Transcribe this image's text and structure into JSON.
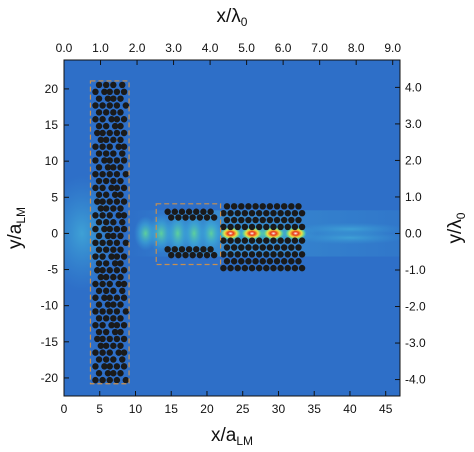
{
  "chart_data": {
    "type": "heatmap",
    "bottom_axis": {
      "label_main": "x/a",
      "label_sub": "LM",
      "range": [
        0,
        47
      ],
      "ticks": [
        "0",
        "5",
        "10",
        "15",
        "20",
        "25",
        "30",
        "35",
        "40",
        "45"
      ],
      "tick_values": [
        0,
        5,
        10,
        15,
        20,
        25,
        30,
        35,
        40,
        45
      ]
    },
    "top_axis": {
      "label_main": "x/λ",
      "label_sub": "0",
      "range": [
        0,
        9.2
      ],
      "ticks": [
        "0.0",
        "1.0",
        "2.0",
        "3.0",
        "4.0",
        "5.0",
        "6.0",
        "7.0",
        "8.0",
        "9.0"
      ],
      "tick_values": [
        0,
        1,
        2,
        3,
        4,
        5,
        6,
        7,
        8,
        9
      ]
    },
    "left_axis": {
      "label_main": "y/a",
      "label_sub": "LM",
      "range": [
        -22.5,
        24
      ],
      "ticks": [
        "-20",
        "-15",
        "-10",
        "-5",
        "0",
        "5",
        "10",
        "15",
        "20"
      ],
      "tick_values": [
        -20,
        -15,
        -10,
        -5,
        0,
        5,
        10,
        15,
        20
      ]
    },
    "right_axis": {
      "label_main": "y/λ",
      "label_sub": "0",
      "range": [
        -4.45,
        4.75
      ],
      "ticks": [
        "-4.0",
        "-3.0",
        "-2.0",
        "-1.0",
        "0.0",
        "1.0",
        "2.0",
        "3.0",
        "4.0"
      ],
      "tick_values": [
        -4,
        -3,
        -2,
        -1,
        0,
        1,
        2,
        3,
        4
      ]
    },
    "grid": false,
    "legend": "none",
    "colors": {
      "background_field": "#2e6fc8",
      "weak_field": "#3aa0d8",
      "medium_field": "#58d0a0",
      "strong_field": "#f0e040",
      "peak_field": "#e83818",
      "holes": "#1a1a1a",
      "outline": "#c89050"
    },
    "structures": [
      {
        "kind": "vertical-slab",
        "x_range": [
          4,
          8.8
        ],
        "y_range": [
          -20.5,
          20.8
        ]
      },
      {
        "kind": "lens-region",
        "x_range": [
          13.2,
          21.6
        ],
        "y_range": [
          -4,
          3.8
        ]
      },
      {
        "kind": "waveguide-crystal",
        "x_range": [
          22.3,
          33.5
        ],
        "y_range": [
          -5,
          4.5
        ]
      }
    ],
    "intensity_peaks": [
      {
        "x": 23.3,
        "y": 0,
        "level": "peak"
      },
      {
        "x": 26.3,
        "y": 0,
        "level": "peak"
      },
      {
        "x": 29.3,
        "y": 0,
        "level": "peak"
      },
      {
        "x": 32.4,
        "y": 0,
        "level": "peak"
      }
    ]
  }
}
